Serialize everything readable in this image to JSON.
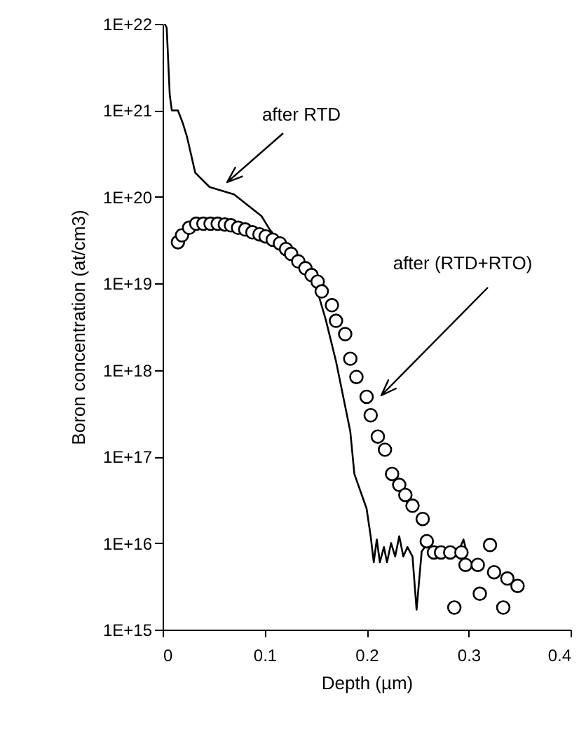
{
  "chart_data": {
    "type": "scatter",
    "xlabel": "Depth  (µm)",
    "ylabel": "Boron concentration  (at/cm3)",
    "log": "y",
    "grid": false,
    "xlim": [
      0,
      0.4
    ],
    "xticks": [
      0,
      0.1,
      0.2,
      0.3,
      0.4
    ],
    "ylim": [
      1000000000000000.0,
      1e+22
    ],
    "yticks": [
      {
        "value": 1000000000000000.0,
        "label": "1E+15"
      },
      {
        "value": 1e+16,
        "label": "1E+16"
      },
      {
        "value": 1e+17,
        "label": "1E+17"
      },
      {
        "value": 1e+18,
        "label": "1E+18"
      },
      {
        "value": 1e+19,
        "label": "1E+19"
      },
      {
        "value": 1e+20,
        "label": "1E+20"
      },
      {
        "value": 1e+21,
        "label": "1E+21"
      },
      {
        "value": 1e+22,
        "label": "1E+22"
      }
    ],
    "series": [
      {
        "type": "line",
        "color": "#000000",
        "marker": "none",
        "line_style": "solid",
        "x": [
          0.002,
          0.004,
          0.007,
          0.009,
          0.015,
          0.02,
          0.024,
          0.032,
          0.046,
          0.07,
          0.097,
          0.105,
          0.125,
          0.149,
          0.16,
          0.17,
          0.184,
          0.188,
          0.2,
          0.204,
          0.207,
          0.21,
          0.213,
          0.217,
          0.22,
          0.224,
          0.228,
          0.232,
          0.236,
          0.24,
          0.245,
          0.249,
          0.254,
          0.26,
          0.27,
          0.28,
          0.29,
          0.295,
          0.298
        ],
        "values": [
          1e+22,
          9e+21,
          1.5e+21,
          1e+21,
          1e+21,
          7e+20,
          4.9e+20,
          1.9e+20,
          1.3e+20,
          1.07e+20,
          6e+19,
          4.2e+19,
          2.2e+19,
          1.05e+19,
          3.8e+18,
          1.26e+18,
          1.95e+17,
          6.3e+16,
          2.5e+16,
          1.2e+16,
          6000000000000000.0,
          1.1e+16,
          6000000000000000.0,
          9000000000000000.0,
          6000000000000000.0,
          1e+16,
          7000000000000000.0,
          1.2e+16,
          7000000000000000.0,
          9000000000000000.0,
          7000000000000000.0,
          1700000000000000.0,
          8000000000000000.0,
          1e+16,
          8000000000000000.0,
          9000000000000000.0,
          8000000000000000.0,
          1.1e+16,
          8000000000000000.0
        ]
      },
      {
        "color": "#000000",
        "marker": "circle",
        "x": [
          0.015,
          0.019,
          0.026,
          0.033,
          0.04,
          0.047,
          0.054,
          0.061,
          0.067,
          0.074,
          0.081,
          0.088,
          0.095,
          0.101,
          0.108,
          0.115,
          0.121,
          0.126,
          0.133,
          0.14,
          0.146,
          0.152,
          0.156,
          0.166,
          0.17,
          0.179,
          0.184,
          0.19,
          0.2,
          0.204,
          0.211,
          0.218,
          0.225,
          0.232,
          0.238,
          0.245,
          0.255,
          0.259,
          0.266,
          0.273,
          0.282,
          0.293,
          0.297,
          0.309,
          0.321,
          0.325,
          0.338,
          0.348,
          0.286,
          0.311,
          0.334
        ],
        "values": [
          3e+19,
          3.6e+19,
          4.4e+19,
          4.9e+19,
          4.9e+19,
          4.9e+19,
          4.9e+19,
          4.8e+19,
          4.7e+19,
          4.4e+19,
          4.2e+19,
          3.9e+19,
          3.7e+19,
          3.5e+19,
          3.2e+19,
          2.9e+19,
          2.5e+19,
          2.2e+19,
          1.8e+19,
          1.5e+19,
          1.25e+19,
          1.05e+19,
          8.1e+18,
          5.6e+18,
          3.7e+18,
          2.6e+18,
          1.35e+18,
          8.3e+17,
          4.9e+17,
          3e+17,
          1.7e+17,
          1.2e+17,
          6.3e+16,
          4.7e+16,
          3.6e+16,
          2.7e+16,
          1.9e+16,
          1.05e+16,
          7800000000000000.0,
          7800000000000000.0,
          7800000000000000.0,
          7800000000000000.0,
          5600000000000000.0,
          5600000000000000.0,
          9500000000000000.0,
          4600000000000000.0,
          3900000000000000.0,
          3200000000000000.0,
          1800000000000000.0,
          2600000000000000.0,
          1800000000000000.0
        ]
      }
    ],
    "annotations": [
      "after RTD",
      "after (RTD+RTO)"
    ]
  }
}
